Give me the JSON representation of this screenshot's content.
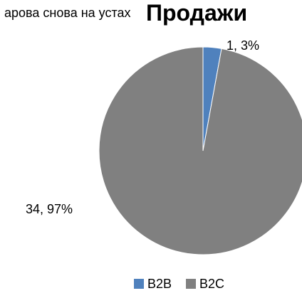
{
  "background_text": "арова снова на устах",
  "chart_data": {
    "type": "pie",
    "title": "Продажи",
    "slices": [
      {
        "name": "B2B",
        "value": 1,
        "percent": "3%",
        "color": "#4f81bd"
      },
      {
        "name": "B2C",
        "value": 34,
        "percent": "97%",
        "color": "#808080"
      }
    ],
    "data_labels": [
      "1, 3%",
      "34, 97%"
    ],
    "legend": {
      "placement": "bottom",
      "entries": [
        "B2B",
        "B2C"
      ]
    }
  }
}
